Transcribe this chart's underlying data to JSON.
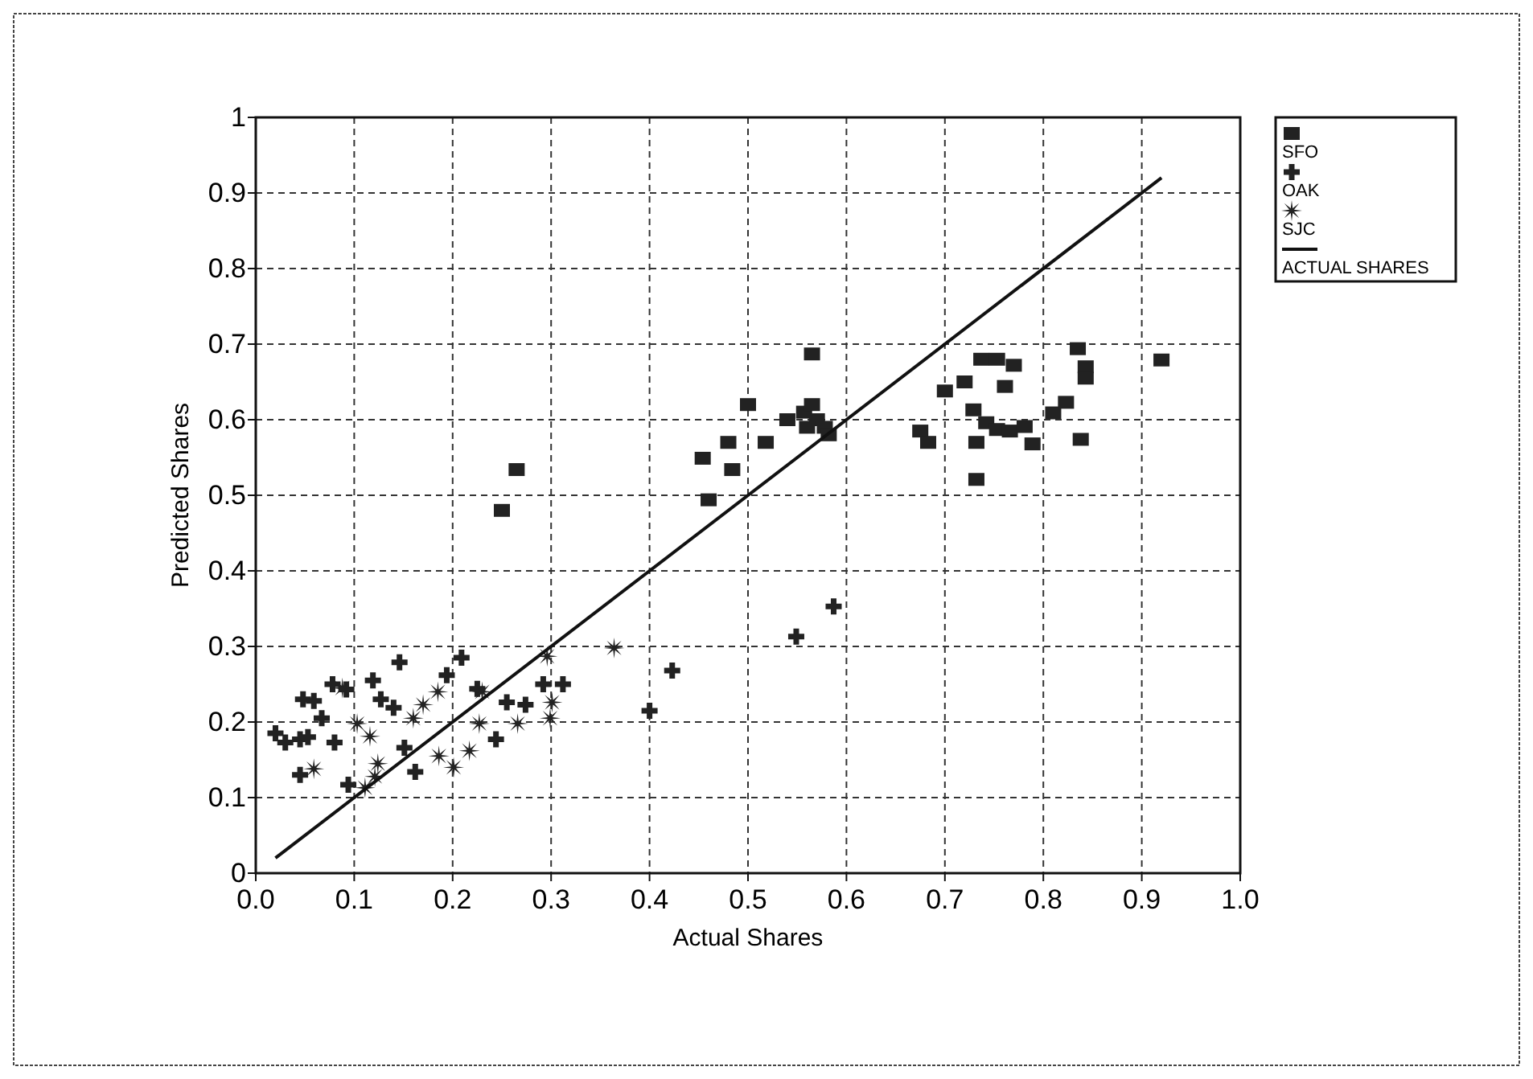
{
  "chart_data": {
    "type": "scatter",
    "xlabel": "Actual Shares",
    "ylabel": "Predicted Shares",
    "xlim": [
      0,
      1
    ],
    "ylim": [
      0,
      1
    ],
    "xticks": [
      {
        "value": 0,
        "label": "0.0"
      },
      0.1,
      0.2,
      0.3,
      0.4,
      0.5,
      0.6,
      0.7,
      0.8,
      0.9,
      {
        "value": 1,
        "label": "1.0"
      }
    ],
    "yticks": [
      0,
      0.1,
      0.2,
      0.3,
      0.4,
      0.5,
      0.6,
      0.7,
      0.8,
      0.9,
      1
    ],
    "grid": true,
    "legend": "top right",
    "series": [
      {
        "name": "SFO",
        "color": "#222222",
        "marker": "square",
        "x": [
          0.25,
          0.265,
          0.454,
          0.46,
          0.48,
          0.484,
          0.5,
          0.518,
          0.565,
          0.54,
          0.557,
          0.565,
          0.57,
          0.578,
          0.56,
          0.582,
          0.675,
          0.683,
          0.7,
          0.72,
          0.737,
          0.753,
          0.77,
          0.761,
          0.729,
          0.732,
          0.732,
          0.742,
          0.753,
          0.766,
          0.781,
          0.789,
          0.81,
          0.823,
          0.835,
          0.843,
          0.843,
          0.838,
          0.92
        ],
        "values": [
          0.48,
          0.534,
          0.549,
          0.494,
          0.57,
          0.534,
          0.62,
          0.57,
          0.687,
          0.6,
          0.61,
          0.62,
          0.6,
          0.59,
          0.59,
          0.58,
          0.585,
          0.57,
          0.638,
          0.65,
          0.68,
          0.68,
          0.672,
          0.644,
          0.613,
          0.57,
          0.521,
          0.596,
          0.587,
          0.585,
          0.591,
          0.568,
          0.609,
          0.623,
          0.694,
          0.67,
          0.655,
          0.574,
          0.679
        ]
      },
      {
        "name": "OAK",
        "color": "#222222",
        "marker": "cross",
        "x": [
          0.02,
          0.03,
          0.048,
          0.059,
          0.045,
          0.053,
          0.045,
          0.067,
          0.08,
          0.078,
          0.092,
          0.094,
          0.119,
          0.127,
          0.14,
          0.146,
          0.151,
          0.162,
          0.209,
          0.194,
          0.225,
          0.244,
          0.255,
          0.274,
          0.292,
          0.312,
          0.423,
          0.4,
          0.549,
          0.587
        ],
        "values": [
          0.185,
          0.173,
          0.23,
          0.228,
          0.177,
          0.18,
          0.13,
          0.205,
          0.173,
          0.25,
          0.243,
          0.117,
          0.255,
          0.23,
          0.219,
          0.279,
          0.166,
          0.134,
          0.285,
          0.262,
          0.244,
          0.177,
          0.226,
          0.223,
          0.25,
          0.25,
          0.268,
          0.215,
          0.313,
          0.353
        ]
      },
      {
        "name": "SJC",
        "color": "#222222",
        "marker": "star",
        "x": [
          0.059,
          0.088,
          0.103,
          0.111,
          0.116,
          0.124,
          0.121,
          0.16,
          0.17,
          0.185,
          0.186,
          0.201,
          0.217,
          0.227,
          0.23,
          0.266,
          0.296,
          0.301,
          0.299,
          0.364
        ],
        "values": [
          0.138,
          0.245,
          0.198,
          0.113,
          0.181,
          0.145,
          0.128,
          0.205,
          0.223,
          0.24,
          0.155,
          0.14,
          0.162,
          0.198,
          0.24,
          0.198,
          0.287,
          0.226,
          0.205,
          0.298
        ]
      },
      {
        "name": "ACTUAL SHARES",
        "type": "line",
        "color": "#111111",
        "marker": "none",
        "line_style": "solid",
        "x": [
          0.02,
          0.92
        ],
        "values": [
          0.02,
          0.92
        ]
      }
    ]
  }
}
